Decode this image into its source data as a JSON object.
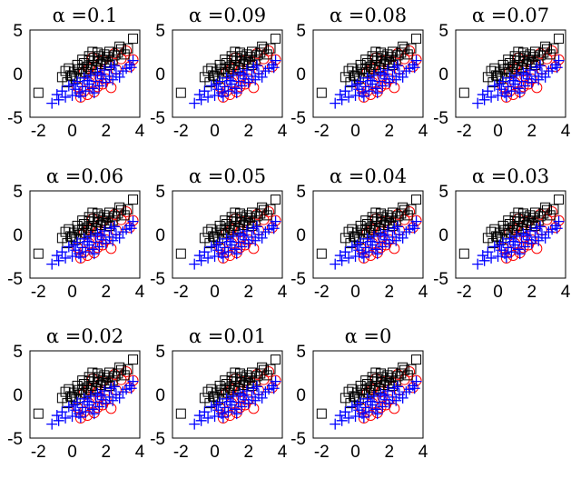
{
  "figure": {
    "background_color": "#ffffff"
  },
  "chart_data": {
    "type": "scatter",
    "colors": {
      "class_a": "#ff0000",
      "class_b": "#000000",
      "class_c": "#0000ff"
    },
    "markers": {
      "class_a": "circle",
      "class_b": "square",
      "class_c": "plus"
    },
    "grid": false,
    "legend": "none",
    "xlim": [
      -2.5,
      4
    ],
    "ylim": [
      -5,
      5
    ],
    "xticks": [
      "-2",
      "0",
      "2",
      "4"
    ],
    "yticks": [
      "5",
      "0",
      "-5"
    ],
    "panels": [
      {
        "title": "α =0.1"
      },
      {
        "title": "α =0.09"
      },
      {
        "title": "α =0.08"
      },
      {
        "title": "α =0.07"
      },
      {
        "title": "α =0.06"
      },
      {
        "title": "α =0.05"
      },
      {
        "title": "α =0.04"
      },
      {
        "title": "α =0.03"
      },
      {
        "title": "α =0.02"
      },
      {
        "title": "α =0.01"
      },
      {
        "title": "α =0"
      }
    ],
    "series": [
      {
        "marker": "circle",
        "color": "#ff0000",
        "points": [
          [
            0.3,
            -1.5
          ],
          [
            0.7,
            -2.0
          ],
          [
            1.0,
            -1.0
          ],
          [
            1.5,
            -1.5
          ],
          [
            1.8,
            -1.2
          ],
          [
            2.0,
            -0.6
          ],
          [
            2.3,
            -1.6
          ],
          [
            0.5,
            -2.7
          ],
          [
            0.9,
            -2.4
          ],
          [
            1.3,
            -2.1
          ],
          [
            2.6,
            0.5
          ],
          [
            3.4,
            0.8
          ],
          [
            3.6,
            1.6
          ],
          [
            2.9,
            1.7
          ],
          [
            1.8,
            1.5
          ],
          [
            1.0,
            0.6
          ],
          [
            1.5,
            0.3
          ],
          [
            2.2,
            0.9
          ],
          [
            2.5,
            2.3
          ],
          [
            1.2,
            1.8
          ],
          [
            3.2,
            2.6
          ],
          [
            1.6,
            -0.3
          ],
          [
            0.7,
            0.2
          ]
        ]
      },
      {
        "marker": "square",
        "color": "#000000",
        "points": [
          [
            -2.0,
            -2.2
          ],
          [
            -0.6,
            -0.4
          ],
          [
            -0.3,
            -1.0
          ],
          [
            -0.1,
            -0.2
          ],
          [
            0.1,
            0.2
          ],
          [
            0.2,
            -0.6
          ],
          [
            0.3,
            1.0
          ],
          [
            0.5,
            0.0
          ],
          [
            0.6,
            0.6
          ],
          [
            0.7,
            1.2
          ],
          [
            0.8,
            0.2
          ],
          [
            0.9,
            0.8
          ],
          [
            1.0,
            1.5
          ],
          [
            1.1,
            0.5
          ],
          [
            1.2,
            1.0
          ],
          [
            1.3,
            1.8
          ],
          [
            1.4,
            0.7
          ],
          [
            1.5,
            1.4
          ],
          [
            1.6,
            2.0
          ],
          [
            1.7,
            1.1
          ],
          [
            1.8,
            1.6
          ],
          [
            1.9,
            2.2
          ],
          [
            2.0,
            1.3
          ],
          [
            2.1,
            1.9
          ],
          [
            2.2,
            2.5
          ],
          [
            2.4,
            1.6
          ],
          [
            2.5,
            2.1
          ],
          [
            2.7,
            2.4
          ],
          [
            2.9,
            2.8
          ],
          [
            3.1,
            2.2
          ],
          [
            3.3,
            2.9
          ],
          [
            3.6,
            4.0
          ],
          [
            -0.2,
            0.6
          ],
          [
            0.0,
            -0.3
          ],
          [
            0.4,
            0.5
          ],
          [
            1.0,
            2.0
          ],
          [
            1.5,
            2.4
          ],
          [
            2.2,
            1.0
          ],
          [
            2.8,
            3.1
          ],
          [
            0.6,
            1.6
          ],
          [
            -0.4,
            0.3
          ],
          [
            1.2,
            2.5
          ]
        ]
      },
      {
        "marker": "plus",
        "color": "#0000ff",
        "points": [
          [
            -1.2,
            -3.4
          ],
          [
            -0.8,
            -3.0
          ],
          [
            -0.4,
            -2.7
          ],
          [
            0.0,
            -2.5
          ],
          [
            0.2,
            -1.8
          ],
          [
            0.4,
            -2.2
          ],
          [
            0.6,
            -1.5
          ],
          [
            0.8,
            -2.0
          ],
          [
            1.0,
            -1.2
          ],
          [
            1.2,
            -1.7
          ],
          [
            1.4,
            -0.9
          ],
          [
            1.6,
            -1.4
          ],
          [
            1.8,
            -0.6
          ],
          [
            2.0,
            -1.0
          ],
          [
            2.2,
            -0.3
          ],
          [
            2.4,
            -0.7
          ],
          [
            2.6,
            0.0
          ],
          [
            2.8,
            -0.4
          ],
          [
            3.0,
            0.3
          ],
          [
            3.2,
            0.6
          ],
          [
            3.4,
            1.0
          ],
          [
            3.6,
            1.5
          ],
          [
            3.5,
            0.7
          ],
          [
            -0.2,
            -1.4
          ],
          [
            0.3,
            -0.9
          ],
          [
            0.7,
            -0.5
          ],
          [
            1.1,
            -0.2
          ],
          [
            1.5,
            0.1
          ],
          [
            1.9,
            0.4
          ],
          [
            2.3,
            0.7
          ],
          [
            -0.6,
            -2.0
          ],
          [
            0.1,
            -1.2
          ],
          [
            0.9,
            -0.8
          ],
          [
            1.7,
            -0.1
          ],
          [
            2.5,
            0.9
          ],
          [
            -0.9,
            -2.4
          ],
          [
            0.5,
            -2.6
          ],
          [
            1.3,
            -2.2
          ]
        ]
      }
    ]
  }
}
